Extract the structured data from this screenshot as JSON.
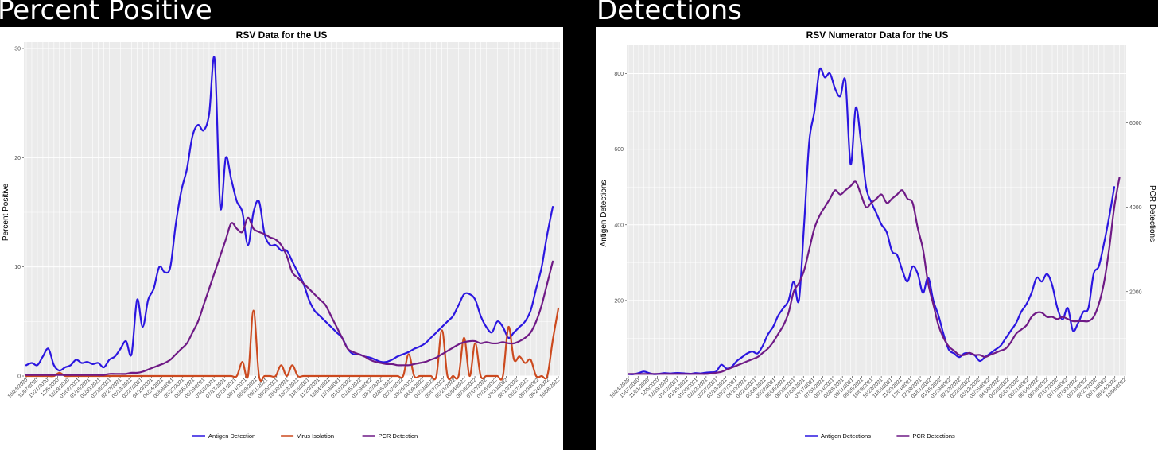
{
  "headings": {
    "left": "Percent Positive",
    "right": "Detections"
  },
  "colors": {
    "antigen": "#2b16e0",
    "virus": "#cc4a1f",
    "pcr": "#6f1a86",
    "plot_background": "#ebebeb",
    "grid": "#ffffff"
  },
  "chart_data": [
    {
      "type": "line",
      "title": "RSV Data for the US",
      "xlabel": "",
      "ylabel": "Percent Positive",
      "ylim": [
        0,
        30
      ],
      "yticks": [
        0,
        10,
        20,
        30
      ],
      "grid": true,
      "legend_position": "bottom",
      "x_tick_labels": [
        "10/24/2020",
        "11/21/2020",
        "12/19/2020",
        "01/16/2021",
        "02/13/2021",
        "03/13/2021",
        "04/10/2021",
        "05/08/2021",
        "06/05/2021",
        "07/03/2021",
        "07/31/2021",
        "08/28/2021",
        "09/25/2021",
        "10/23/2021",
        "11/20/2021",
        "12/18/2021",
        "01/15/2022",
        "02/12/2022",
        "03/12/2022",
        "04/09/2022",
        "05/07/2022",
        "06/04/2022",
        "07/02/2022",
        "07/30/2022",
        "08/27/2022",
        "09/24/2022",
        "10/08/2022"
      ],
      "x_tick_labels_drawn": [
        "10/24/2020",
        "11/07/2020",
        "11/21/2020",
        "12/5/2020",
        "12/19/2020",
        "01/02/2021",
        "01/16/2021",
        "01/30/2021",
        "02/13/2021",
        "02/27/2021",
        "03/13/2021",
        "03/27/2021",
        "04/10/2021",
        "04/24/2021",
        "05/08/2021",
        "05/22/2021",
        "06/05/2021",
        "06/19/2021",
        "07/03/2021",
        "07/17/2021",
        "07/31/2021",
        "08/14/2021",
        "08/28/2021",
        "09/11/2021",
        "09/25/2021",
        "10/09/2021",
        "10/23/2021",
        "11/06/2021",
        "11/20/2021",
        "12/04/2021",
        "12/18/2021",
        "01/01/2022",
        "01/15/2022",
        "01/29/2022",
        "02/12/2022",
        "02/26/2022",
        "03/12/2022",
        "03/26/2022",
        "04/09/2022",
        "04/23/2022",
        "05/07/2022",
        "05/21/2022",
        "06/04/2022",
        "06/18/2022",
        "07/02/2022",
        "07/16/2022",
        "07/30/2022",
        "08/13/2022",
        "08/27/2022",
        "09/10/2022",
        "09/24/2022",
        "10/08/2022"
      ],
      "series": [
        {
          "name": "Antigen Detection",
          "axis": "left",
          "values": [
            1,
            1.2,
            1,
            1.8,
            2.5,
            1,
            0.5,
            0.8,
            1,
            1.5,
            1.2,
            1.3,
            1.1,
            1.2,
            0.8,
            1.5,
            1.8,
            2.5,
            3.2,
            2,
            7,
            4.5,
            7,
            8,
            10,
            9.5,
            10,
            14,
            17,
            19,
            22,
            23,
            22.5,
            24,
            29,
            15.5,
            20,
            18,
            16,
            15,
            12,
            15,
            16,
            13,
            12,
            12,
            11.5,
            11.5,
            10.5,
            9.5,
            8.5,
            7,
            6,
            5.5,
            5,
            4.5,
            4,
            3.5,
            2.5,
            2,
            2,
            1.8,
            1.7,
            1.5,
            1.3,
            1.3,
            1.5,
            1.8,
            2,
            2.2,
            2.5,
            2.7,
            3,
            3.5,
            4,
            4.5,
            5,
            5.5,
            6.5,
            7.5,
            7.5,
            7,
            5.5,
            4.5,
            4,
            5,
            4.5,
            3.5,
            4,
            4.5,
            5,
            6,
            8,
            10,
            13,
            15.5
          ]
        },
        {
          "name": "Virus Isolation",
          "axis": "left",
          "values": [
            0,
            0,
            0,
            0,
            0,
            0,
            0.3,
            0,
            0,
            0,
            0,
            0,
            0,
            0,
            0,
            0,
            0,
            0,
            0,
            0,
            0,
            0,
            0,
            0,
            0,
            0,
            0,
            0,
            0,
            0,
            0,
            0,
            0,
            0,
            0,
            0,
            0,
            0,
            0,
            1.3,
            0,
            6,
            0,
            0,
            0,
            0,
            1,
            0,
            1,
            0,
            0,
            0,
            0,
            0,
            0,
            0,
            0,
            0,
            0,
            0,
            0,
            0,
            0,
            0,
            0,
            0,
            0,
            0,
            0,
            2,
            0,
            0,
            0,
            0,
            0,
            4.2,
            0,
            0,
            0,
            3.5,
            0,
            3,
            0,
            0,
            0,
            0,
            0,
            4.5,
            1.5,
            1.8,
            1.2,
            1.5,
            0,
            0,
            0,
            3.3,
            6.2
          ]
        },
        {
          "name": "PCR Detection",
          "axis": "left",
          "values": [
            0.1,
            0.1,
            0.1,
            0.1,
            0.1,
            0.1,
            0.1,
            0.1,
            0.1,
            0.1,
            0.1,
            0.1,
            0.1,
            0.1,
            0.1,
            0.2,
            0.2,
            0.2,
            0.2,
            0.3,
            0.3,
            0.4,
            0.6,
            0.8,
            1,
            1.2,
            1.5,
            2,
            2.5,
            3,
            4,
            5,
            6.5,
            8,
            9.5,
            11,
            12.5,
            14,
            13.5,
            13.2,
            14.5,
            13.5,
            13.2,
            13,
            12.7,
            12.5,
            12,
            11,
            9.5,
            9,
            8.5,
            8,
            7.5,
            7,
            6.5,
            5.5,
            4.5,
            3.5,
            2.5,
            2.2,
            2,
            1.8,
            1.5,
            1.3,
            1.2,
            1.1,
            1.1,
            1,
            1,
            1,
            1.1,
            1.2,
            1.3,
            1.5,
            1.7,
            2,
            2.3,
            2.6,
            2.9,
            3.1,
            3.2,
            3.2,
            3,
            3.1,
            3,
            3,
            3.1,
            3,
            3,
            3.2,
            3.5,
            4,
            5,
            6.5,
            8.5,
            10.5
          ]
        }
      ]
    },
    {
      "type": "line",
      "title": "RSV Numerator Data for the US",
      "xlabel": "",
      "ylabel": "Antigen Detections",
      "ylabel_right": "PCR Detections",
      "ylim": [
        0,
        860
      ],
      "yticks": [
        200,
        400,
        600,
        800
      ],
      "ylim_right": [
        0,
        7700
      ],
      "yticks_right": [
        2000,
        4000,
        6000
      ],
      "grid": true,
      "legend_position": "bottom",
      "x_tick_labels": [
        "10/24/2020",
        "11/21/2020",
        "12/19/2020",
        "01/16/2021",
        "02/13/2021",
        "03/13/2021",
        "04/10/2021",
        "05/08/2021",
        "06/05/2021",
        "07/03/2021",
        "07/31/2021",
        "08/28/2021",
        "09/25/2021",
        "10/23/2021",
        "11/20/2021",
        "12/18/2021",
        "01/15/2022",
        "02/12/2022",
        "03/12/2022",
        "04/09/2022",
        "05/07/2022",
        "06/04/2022",
        "07/02/2022",
        "07/30/2022",
        "08/27/2022",
        "09/24/2022",
        "10/08/2022"
      ],
      "x_tick_labels_drawn": [
        "10/24/2020",
        "11/07/2020",
        "11/21/2020",
        "12/5/2020",
        "12/19/2020",
        "01/02/2021",
        "01/16/2021",
        "01/30/2021",
        "02/13/2021",
        "02/27/2021",
        "03/13/2021",
        "03/27/2021",
        "04/10/2021",
        "04/24/2021",
        "05/08/2021",
        "05/22/2021",
        "06/05/2021",
        "06/19/2021",
        "07/03/2021",
        "07/17/2021",
        "07/31/2021",
        "08/14/2021",
        "08/28/2021",
        "09/11/2021",
        "09/25/2021",
        "10/09/2021",
        "10/23/2021",
        "11/06/2021",
        "11/20/2021",
        "12/04/2021",
        "12/18/2021",
        "01/01/2022",
        "01/15/2022",
        "01/29/2022",
        "02/12/2022",
        "02/26/2022",
        "03/12/2022",
        "03/26/2022",
        "04/09/2022",
        "04/23/2022",
        "05/07/2022",
        "05/21/2022",
        "06/04/2022",
        "06/18/2022",
        "07/02/2022",
        "07/16/2022",
        "07/30/2022",
        "08/13/2022",
        "08/27/2022",
        "09/10/2022",
        "09/24/2022",
        "10/08/2022"
      ],
      "series": [
        {
          "name": "Antigen Detections",
          "axis": "left",
          "values": [
            5,
            5,
            8,
            12,
            8,
            5,
            6,
            8,
            7,
            8,
            8,
            7,
            6,
            8,
            7,
            9,
            10,
            12,
            30,
            20,
            25,
            40,
            50,
            60,
            65,
            60,
            80,
            110,
            130,
            160,
            180,
            200,
            250,
            200,
            400,
            620,
            700,
            810,
            790,
            800,
            760,
            740,
            780,
            560,
            710,
            620,
            500,
            460,
            430,
            400,
            380,
            330,
            320,
            280,
            250,
            290,
            270,
            220,
            260,
            200,
            160,
            110,
            70,
            60,
            50,
            60,
            60,
            55,
            40,
            50,
            60,
            70,
            80,
            100,
            120,
            140,
            170,
            190,
            220,
            260,
            250,
            270,
            240,
            180,
            150,
            180,
            120,
            140,
            170,
            180,
            270,
            290,
            350,
            420,
            500
          ]
        },
        {
          "name": "PCR Detections",
          "axis": "right",
          "values": [
            50,
            50,
            50,
            50,
            50,
            50,
            50,
            50,
            50,
            50,
            50,
            50,
            50,
            50,
            50,
            50,
            60,
            80,
            100,
            150,
            200,
            250,
            300,
            350,
            400,
            450,
            550,
            650,
            800,
            1000,
            1200,
            1500,
            2000,
            2200,
            2500,
            3000,
            3500,
            3800,
            4000,
            4200,
            4400,
            4300,
            4400,
            4500,
            4600,
            4300,
            4000,
            4100,
            4200,
            4300,
            4100,
            4200,
            4300,
            4400,
            4200,
            4100,
            3500,
            3000,
            2200,
            1700,
            1200,
            900,
            700,
            600,
            500,
            500,
            550,
            500,
            500,
            450,
            500,
            550,
            600,
            650,
            800,
            1000,
            1100,
            1200,
            1400,
            1500,
            1500,
            1400,
            1400,
            1350,
            1400,
            1350,
            1300,
            1300,
            1300,
            1300,
            1400,
            1700,
            2200,
            3000,
            4000,
            4700
          ]
        }
      ]
    }
  ]
}
